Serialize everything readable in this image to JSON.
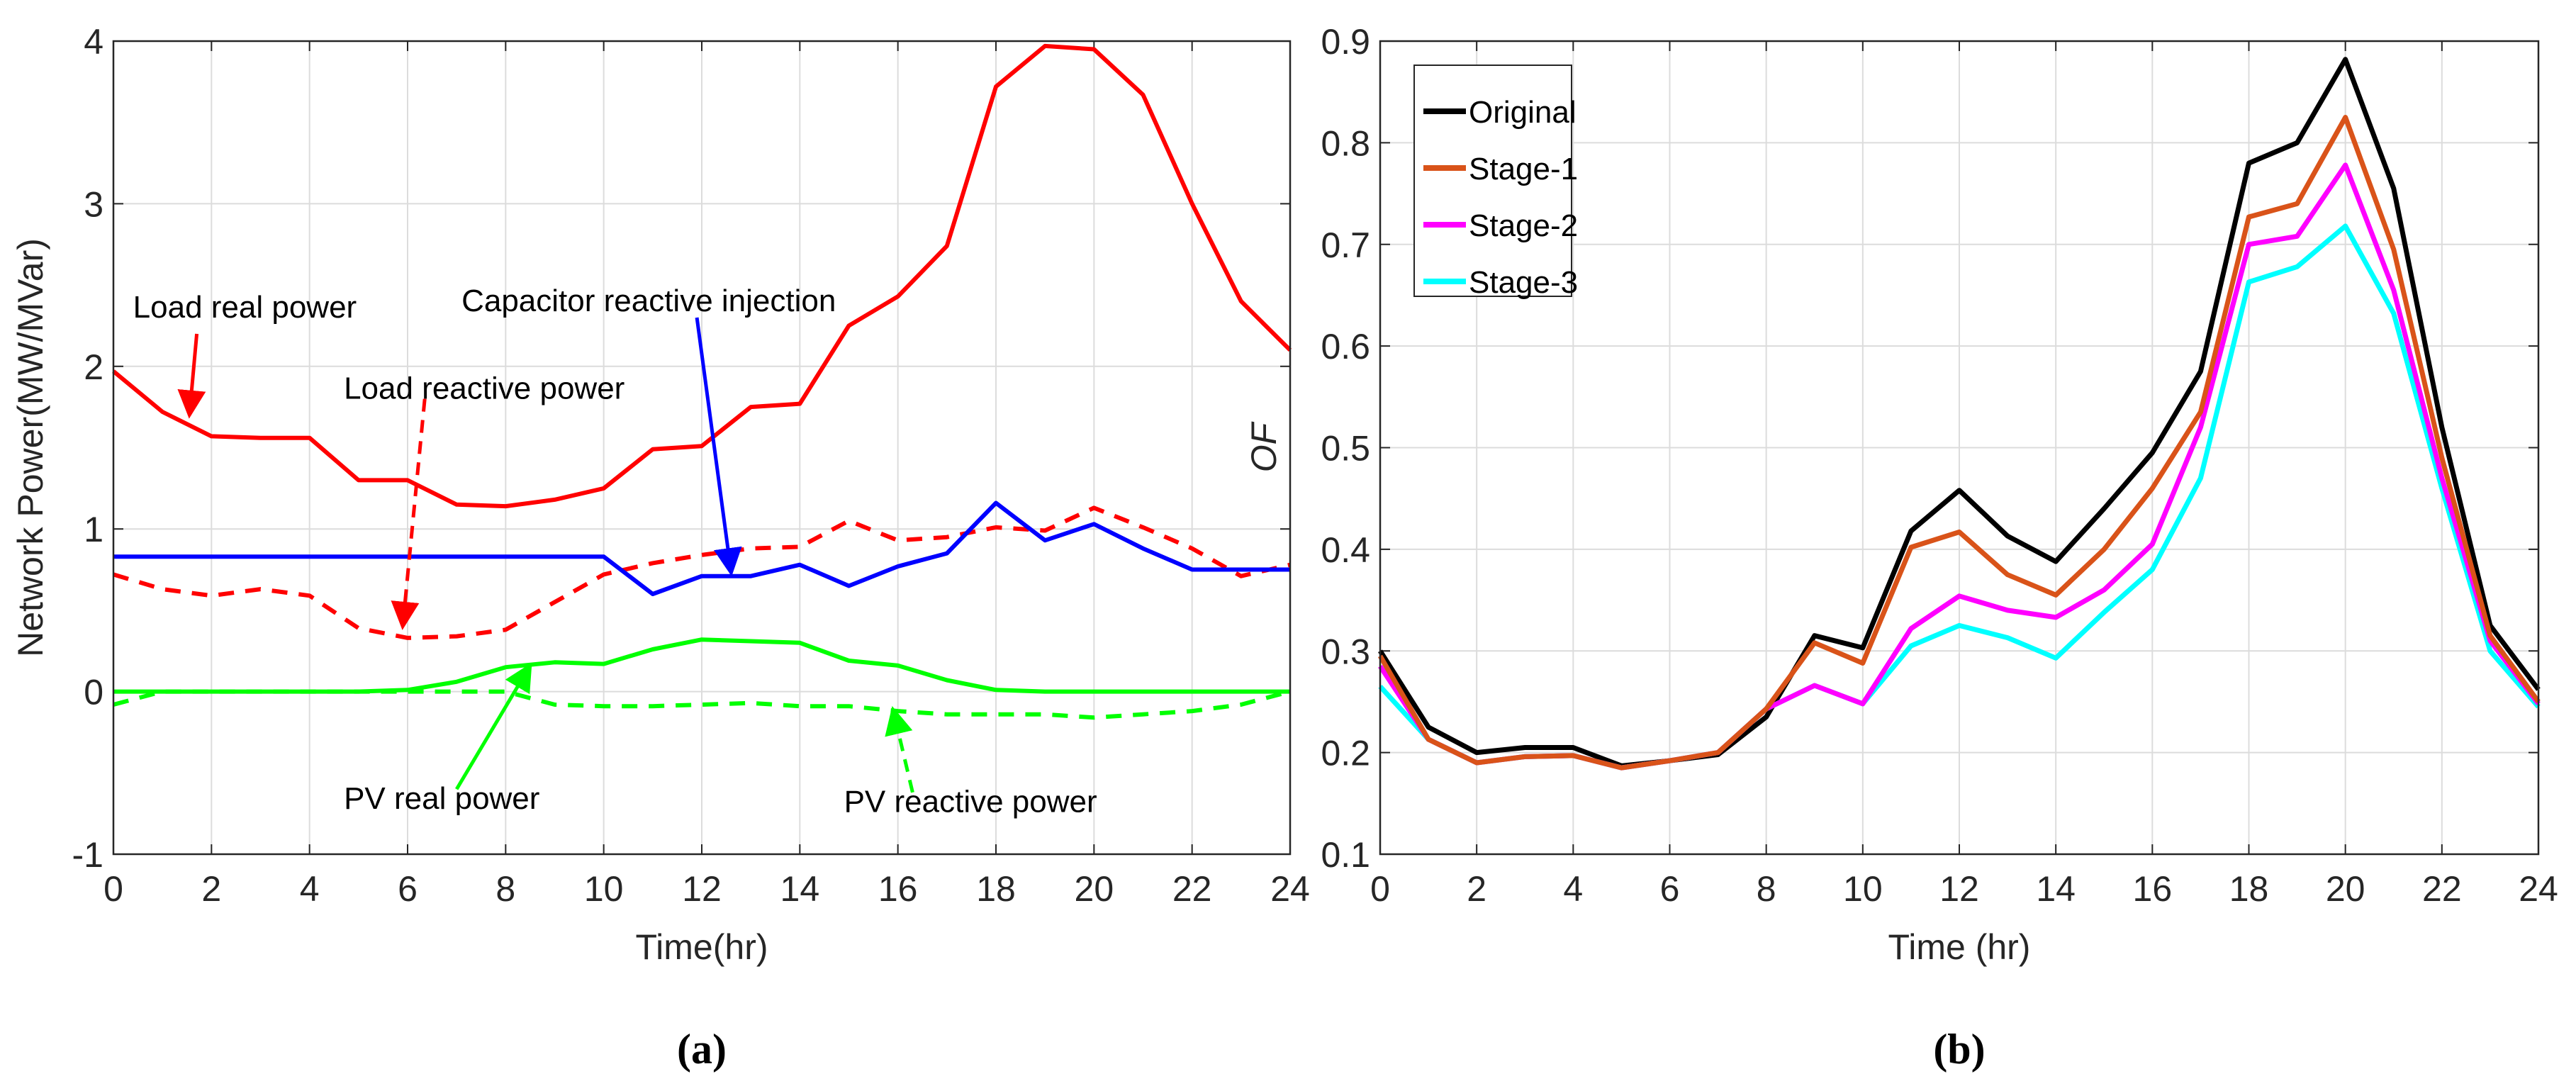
{
  "chart_data": [
    {
      "type": "line",
      "caption": "(a)",
      "xlabel": "Time(hr)",
      "ylabel": "Network Power(MW/MVar)",
      "xlim": [
        0,
        24
      ],
      "ylim": [
        -1,
        4
      ],
      "xticks": [
        "0",
        "2",
        "4",
        "6",
        "8",
        "10",
        "12",
        "14",
        "16",
        "18",
        "20",
        "22",
        "24"
      ],
      "yticks": [
        "-1",
        "0",
        "1",
        "2",
        "3",
        "4"
      ],
      "grid": true,
      "x": [
        0,
        1,
        2,
        3,
        4,
        5,
        6,
        7,
        8,
        9,
        10,
        11,
        12,
        13,
        14,
        15,
        16,
        17,
        18,
        19,
        20,
        21,
        22,
        23,
        24
      ],
      "series": [
        {
          "name": "Load real power",
          "color": "#ff0000",
          "style": "solid",
          "values": [
            1.97,
            1.72,
            1.57,
            1.56,
            1.56,
            1.3,
            1.3,
            1.15,
            1.14,
            1.18,
            1.25,
            1.49,
            1.51,
            1.75,
            1.77,
            2.25,
            2.43,
            2.74,
            3.72,
            3.97,
            3.95,
            3.67,
            3.0,
            2.4,
            2.1
          ]
        },
        {
          "name": "Load reactive power",
          "color": "#ff0000",
          "style": "dashed",
          "values": [
            0.72,
            0.63,
            0.59,
            0.63,
            0.59,
            0.39,
            0.33,
            0.34,
            0.38,
            0.55,
            0.72,
            0.79,
            0.84,
            0.88,
            0.89,
            1.05,
            0.93,
            0.95,
            1.01,
            0.99,
            1.13,
            1.01,
            0.88,
            0.71,
            0.78
          ]
        },
        {
          "name": "Capacitor reactive injection",
          "color": "#0000ff",
          "style": "solid",
          "values": [
            0.83,
            0.83,
            0.83,
            0.83,
            0.83,
            0.83,
            0.83,
            0.83,
            0.83,
            0.83,
            0.83,
            0.6,
            0.71,
            0.71,
            0.78,
            0.65,
            0.77,
            0.85,
            1.16,
            0.93,
            1.03,
            0.88,
            0.75,
            0.75,
            0.75
          ]
        },
        {
          "name": "PV real power",
          "color": "#00ff00",
          "style": "solid",
          "values": [
            0,
            0,
            0,
            0,
            0,
            0,
            0.01,
            0.06,
            0.15,
            0.18,
            0.17,
            0.26,
            0.32,
            0.31,
            0.3,
            0.19,
            0.16,
            0.07,
            0.01,
            0,
            0,
            0,
            0,
            0,
            0
          ]
        },
        {
          "name": "PV reactive power",
          "color": "#00ff00",
          "style": "dashed",
          "values": [
            -0.08,
            0,
            0,
            0,
            0,
            0,
            0,
            0,
            0,
            -0.08,
            -0.09,
            -0.09,
            -0.08,
            -0.07,
            -0.09,
            -0.09,
            -0.12,
            -0.14,
            -0.14,
            -0.14,
            -0.16,
            -0.14,
            -0.12,
            -0.08,
            0
          ]
        }
      ],
      "annotations": [
        "Load real power",
        "Load reactive power",
        "Capacitor reactive injection",
        "PV real power",
        "PV reactive power"
      ]
    },
    {
      "type": "line",
      "caption": "(b)",
      "xlabel": "Time (hr)",
      "ylabel": "OF",
      "xlim": [
        0,
        24
      ],
      "ylim": [
        0.1,
        0.9
      ],
      "xticks": [
        "0",
        "2",
        "4",
        "6",
        "8",
        "10",
        "12",
        "14",
        "16",
        "18",
        "20",
        "22",
        "24"
      ],
      "yticks": [
        "0.1",
        "0.2",
        "0.3",
        "0.4",
        "0.5",
        "0.6",
        "0.7",
        "0.8",
        "0.9"
      ],
      "grid": true,
      "legend": "top-left",
      "x": [
        0,
        1,
        2,
        3,
        4,
        5,
        6,
        7,
        8,
        9,
        10,
        11,
        12,
        13,
        14,
        15,
        16,
        17,
        18,
        19,
        20,
        21,
        22,
        23,
        24
      ],
      "series": [
        {
          "name": "Original",
          "color": "#000000",
          "values": [
            0.3,
            0.225,
            0.2,
            0.205,
            0.205,
            0.187,
            0.192,
            0.198,
            0.235,
            0.315,
            0.303,
            0.418,
            0.458,
            0.413,
            0.388,
            0.44,
            0.495,
            0.575,
            0.78,
            0.8,
            0.882,
            0.755,
            0.52,
            0.325,
            0.262
          ]
        },
        {
          "name": "Stage-1",
          "color": "#d95319",
          "values": [
            0.295,
            0.213,
            0.19,
            0.196,
            0.197,
            0.185,
            0.192,
            0.2,
            0.243,
            0.308,
            0.288,
            0.402,
            0.417,
            0.375,
            0.355,
            0.4,
            0.46,
            0.535,
            0.727,
            0.74,
            0.825,
            0.695,
            0.49,
            0.315,
            0.25
          ]
        },
        {
          "name": "Stage-2",
          "color": "#ff00ff",
          "values": [
            0.285,
            0.213,
            0.19,
            0.196,
            0.197,
            0.185,
            0.192,
            0.2,
            0.243,
            0.266,
            0.248,
            0.322,
            0.354,
            0.34,
            0.333,
            0.36,
            0.405,
            0.52,
            0.7,
            0.708,
            0.778,
            0.655,
            0.47,
            0.31,
            0.248
          ]
        },
        {
          "name": "Stage-3",
          "color": "#00ffff",
          "values": [
            0.265,
            0.213,
            0.19,
            0.196,
            0.197,
            0.185,
            0.192,
            0.2,
            0.243,
            0.266,
            0.248,
            0.305,
            0.325,
            0.313,
            0.293,
            0.338,
            0.38,
            0.47,
            0.663,
            0.678,
            0.718,
            0.632,
            0.46,
            0.3,
            0.245
          ]
        }
      ]
    }
  ]
}
